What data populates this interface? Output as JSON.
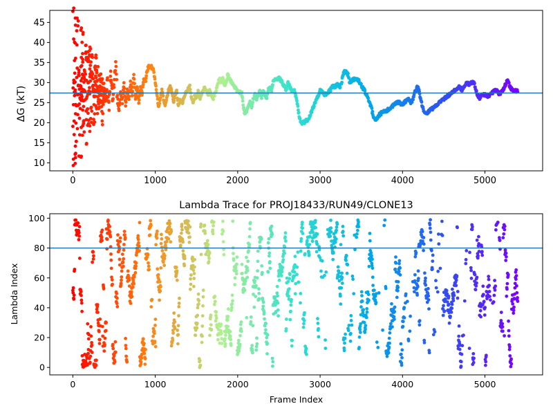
{
  "chart_data": [
    {
      "type": "scatter",
      "title": "",
      "xlabel": "",
      "ylabel": "ΔG (kT)",
      "xlim": [
        -280,
        5700
      ],
      "ylim": [
        8,
        48
      ],
      "xticks": [
        0,
        1000,
        2000,
        3000,
        4000,
        5000
      ],
      "yticks": [
        10,
        15,
        20,
        25,
        30,
        35,
        40,
        45
      ],
      "hline": 27.4,
      "colormap": [
        "#ff0000",
        "#ff7f0e",
        "#b0f090",
        "#30e0d0",
        "#00a8e8",
        "#3050f0",
        "#7a00ff"
      ],
      "x_range": [
        0,
        5400
      ],
      "trace_points": [
        [
          0,
          47
        ],
        [
          5,
          10
        ],
        [
          10,
          41
        ],
        [
          15,
          20
        ],
        [
          20,
          35
        ],
        [
          30,
          28
        ],
        [
          40,
          16
        ],
        [
          50,
          39
        ],
        [
          60,
          22
        ],
        [
          70,
          33
        ],
        [
          80,
          29
        ],
        [
          90,
          26
        ],
        [
          100,
          31
        ],
        [
          110,
          27
        ],
        [
          120,
          36
        ],
        [
          130,
          24
        ],
        [
          140,
          33
        ],
        [
          150,
          28
        ],
        [
          160,
          40
        ],
        [
          175,
          22
        ],
        [
          190,
          30
        ],
        [
          205,
          27
        ],
        [
          220,
          34
        ],
        [
          240,
          29
        ],
        [
          260,
          25
        ],
        [
          280,
          38
        ],
        [
          300,
          27
        ],
        [
          320,
          24
        ],
        [
          340,
          29
        ],
        [
          360,
          20
        ],
        [
          380,
          28
        ],
        [
          400,
          26
        ],
        [
          420,
          30
        ],
        [
          440,
          24
        ],
        [
          460,
          33
        ],
        [
          480,
          26
        ],
        [
          500,
          29
        ],
        [
          520,
          35
        ],
        [
          540,
          26
        ],
        [
          560,
          23
        ],
        [
          580,
          28
        ],
        [
          600,
          25
        ],
        [
          620,
          30
        ],
        [
          640,
          24
        ],
        [
          660,
          28
        ],
        [
          680,
          26
        ],
        [
          700,
          30
        ],
        [
          720,
          27
        ],
        [
          740,
          32
        ],
        [
          760,
          26
        ],
        [
          780,
          29
        ],
        [
          800,
          25
        ],
        [
          820,
          29
        ],
        [
          840,
          27
        ],
        [
          860,
          31
        ],
        [
          880,
          30
        ],
        [
          900,
          33
        ],
        [
          920,
          34
        ],
        [
          950,
          34
        ],
        [
          980,
          33
        ],
        [
          1000,
          30
        ],
        [
          1020,
          27
        ],
        [
          1040,
          24
        ],
        [
          1060,
          26
        ],
        [
          1080,
          28
        ],
        [
          1100,
          26
        ],
        [
          1120,
          24
        ],
        [
          1140,
          26
        ],
        [
          1160,
          28
        ],
        [
          1180,
          29
        ],
        [
          1200,
          28
        ],
        [
          1220,
          25
        ],
        [
          1240,
          27
        ],
        [
          1260,
          28
        ],
        [
          1280,
          24
        ],
        [
          1300,
          26
        ],
        [
          1330,
          25
        ],
        [
          1360,
          27
        ],
        [
          1390,
          28
        ],
        [
          1420,
          29
        ],
        [
          1440,
          26
        ],
        [
          1460,
          25
        ],
        [
          1480,
          27
        ],
        [
          1500,
          26
        ],
        [
          1520,
          28
        ],
        [
          1540,
          26
        ],
        [
          1560,
          27
        ],
        [
          1580,
          28
        ],
        [
          1600,
          29
        ],
        [
          1620,
          28
        ],
        [
          1640,
          27
        ],
        [
          1660,
          28
        ],
        [
          1680,
          27
        ],
        [
          1700,
          26
        ],
        [
          1720,
          27
        ],
        [
          1740,
          28
        ],
        [
          1760,
          30
        ],
        [
          1780,
          31
        ],
        [
          1800,
          30
        ],
        [
          1820,
          31
        ],
        [
          1840,
          29
        ],
        [
          1860,
          30
        ],
        [
          1880,
          32
        ],
        [
          1900,
          31
        ],
        [
          1930,
          30
        ],
        [
          1960,
          29
        ],
        [
          1990,
          28
        ],
        [
          2020,
          27.5
        ],
        [
          2050,
          27.5
        ],
        [
          2070,
          24
        ],
        [
          2090,
          22
        ],
        [
          2110,
          23
        ],
        [
          2130,
          24
        ],
        [
          2150,
          25
        ],
        [
          2170,
          24
        ],
        [
          2190,
          26
        ],
        [
          2210,
          27
        ],
        [
          2230,
          26
        ],
        [
          2250,
          27
        ],
        [
          2270,
          28
        ],
        [
          2290,
          26
        ],
        [
          2310,
          28
        ],
        [
          2330,
          27
        ],
        [
          2350,
          26
        ],
        [
          2370,
          28
        ],
        [
          2390,
          29
        ],
        [
          2410,
          28
        ],
        [
          2430,
          30
        ],
        [
          2450,
          31
        ],
        [
          2480,
          31
        ],
        [
          2510,
          31
        ],
        [
          2540,
          30
        ],
        [
          2570,
          29
        ],
        [
          2590,
          28
        ],
        [
          2610,
          30
        ],
        [
          2630,
          29
        ],
        [
          2660,
          28
        ],
        [
          2690,
          28
        ],
        [
          2710,
          26
        ],
        [
          2730,
          24
        ],
        [
          2750,
          21
        ],
        [
          2770,
          20
        ],
        [
          2800,
          20
        ],
        [
          2830,
          20.5
        ],
        [
          2860,
          21
        ],
        [
          2880,
          22
        ],
        [
          2900,
          23
        ],
        [
          2920,
          24
        ],
        [
          2940,
          25
        ],
        [
          2960,
          26
        ],
        [
          2980,
          27
        ],
        [
          3000,
          28
        ],
        [
          3030,
          27.5
        ],
        [
          3060,
          27
        ],
        [
          3090,
          27.5
        ],
        [
          3120,
          28
        ],
        [
          3150,
          29
        ],
        [
          3180,
          29
        ],
        [
          3210,
          29.5
        ],
        [
          3240,
          29
        ],
        [
          3260,
          30
        ],
        [
          3280,
          32
        ],
        [
          3300,
          33
        ],
        [
          3320,
          32.5
        ],
        [
          3340,
          32
        ],
        [
          3360,
          30
        ],
        [
          3390,
          30.5
        ],
        [
          3420,
          31
        ],
        [
          3450,
          31
        ],
        [
          3480,
          30
        ],
        [
          3510,
          29
        ],
        [
          3540,
          28
        ],
        [
          3560,
          27
        ],
        [
          3580,
          26
        ],
        [
          3600,
          25
        ],
        [
          3620,
          24
        ],
        [
          3640,
          22
        ],
        [
          3660,
          21
        ],
        [
          3690,
          21
        ],
        [
          3720,
          22
        ],
        [
          3750,
          22.5
        ],
        [
          3780,
          23
        ],
        [
          3810,
          23
        ],
        [
          3840,
          23.5
        ],
        [
          3870,
          24
        ],
        [
          3900,
          24.5
        ],
        [
          3930,
          25
        ],
        [
          3960,
          25
        ],
        [
          3990,
          24.5
        ],
        [
          4020,
          25
        ],
        [
          4050,
          25.5
        ],
        [
          4080,
          26
        ],
        [
          4100,
          25
        ],
        [
          4120,
          25.5
        ],
        [
          4140,
          27
        ],
        [
          4160,
          28
        ],
        [
          4180,
          29
        ],
        [
          4200,
          28
        ],
        [
          4220,
          26
        ],
        [
          4240,
          24
        ],
        [
          4260,
          23
        ],
        [
          4280,
          22.5
        ],
        [
          4300,
          22.5
        ],
        [
          4330,
          23
        ],
        [
          4360,
          23.5
        ],
        [
          4390,
          24
        ],
        [
          4420,
          24.5
        ],
        [
          4450,
          25
        ],
        [
          4480,
          25.5
        ],
        [
          4510,
          26
        ],
        [
          4540,
          26.5
        ],
        [
          4570,
          27
        ],
        [
          4600,
          27.5
        ],
        [
          4630,
          28
        ],
        [
          4660,
          28.5
        ],
        [
          4690,
          29
        ],
        [
          4720,
          28
        ],
        [
          4750,
          29
        ],
        [
          4780,
          30
        ],
        [
          4810,
          29.5
        ],
        [
          4840,
          30
        ],
        [
          4870,
          30
        ],
        [
          4890,
          28
        ],
        [
          4910,
          27
        ],
        [
          4930,
          26
        ],
        [
          4950,
          26.5
        ],
        [
          4970,
          27
        ],
        [
          5000,
          27
        ],
        [
          5030,
          26.5
        ],
        [
          5060,
          27
        ],
        [
          5090,
          27.5
        ],
        [
          5120,
          28
        ],
        [
          5150,
          28
        ],
        [
          5180,
          27
        ],
        [
          5210,
          28
        ],
        [
          5240,
          29
        ],
        [
          5260,
          30
        ],
        [
          5280,
          30.5
        ],
        [
          5300,
          29
        ],
        [
          5320,
          28.5
        ],
        [
          5350,
          28
        ],
        [
          5380,
          28
        ],
        [
          5400,
          28
        ]
      ]
    },
    {
      "type": "scatter",
      "title": "Lambda Trace for PROJ18433/RUN49/CLONE13",
      "xlabel": "Frame Index",
      "ylabel": "Lambda Index",
      "xlim": [
        -280,
        5700
      ],
      "ylim": [
        -5,
        103
      ],
      "xticks": [
        0,
        1000,
        2000,
        3000,
        4000,
        5000
      ],
      "yticks": [
        0,
        20,
        40,
        60,
        80,
        100
      ],
      "hline": 80,
      "colormap": [
        "#ff0000",
        "#ff7f0e",
        "#b0f090",
        "#30e0d0",
        "#00a8e8",
        "#3050f0",
        "#7a00ff"
      ],
      "x_range": [
        0,
        5400
      ],
      "y_range": [
        0,
        99
      ],
      "point_count": 5400
    }
  ]
}
